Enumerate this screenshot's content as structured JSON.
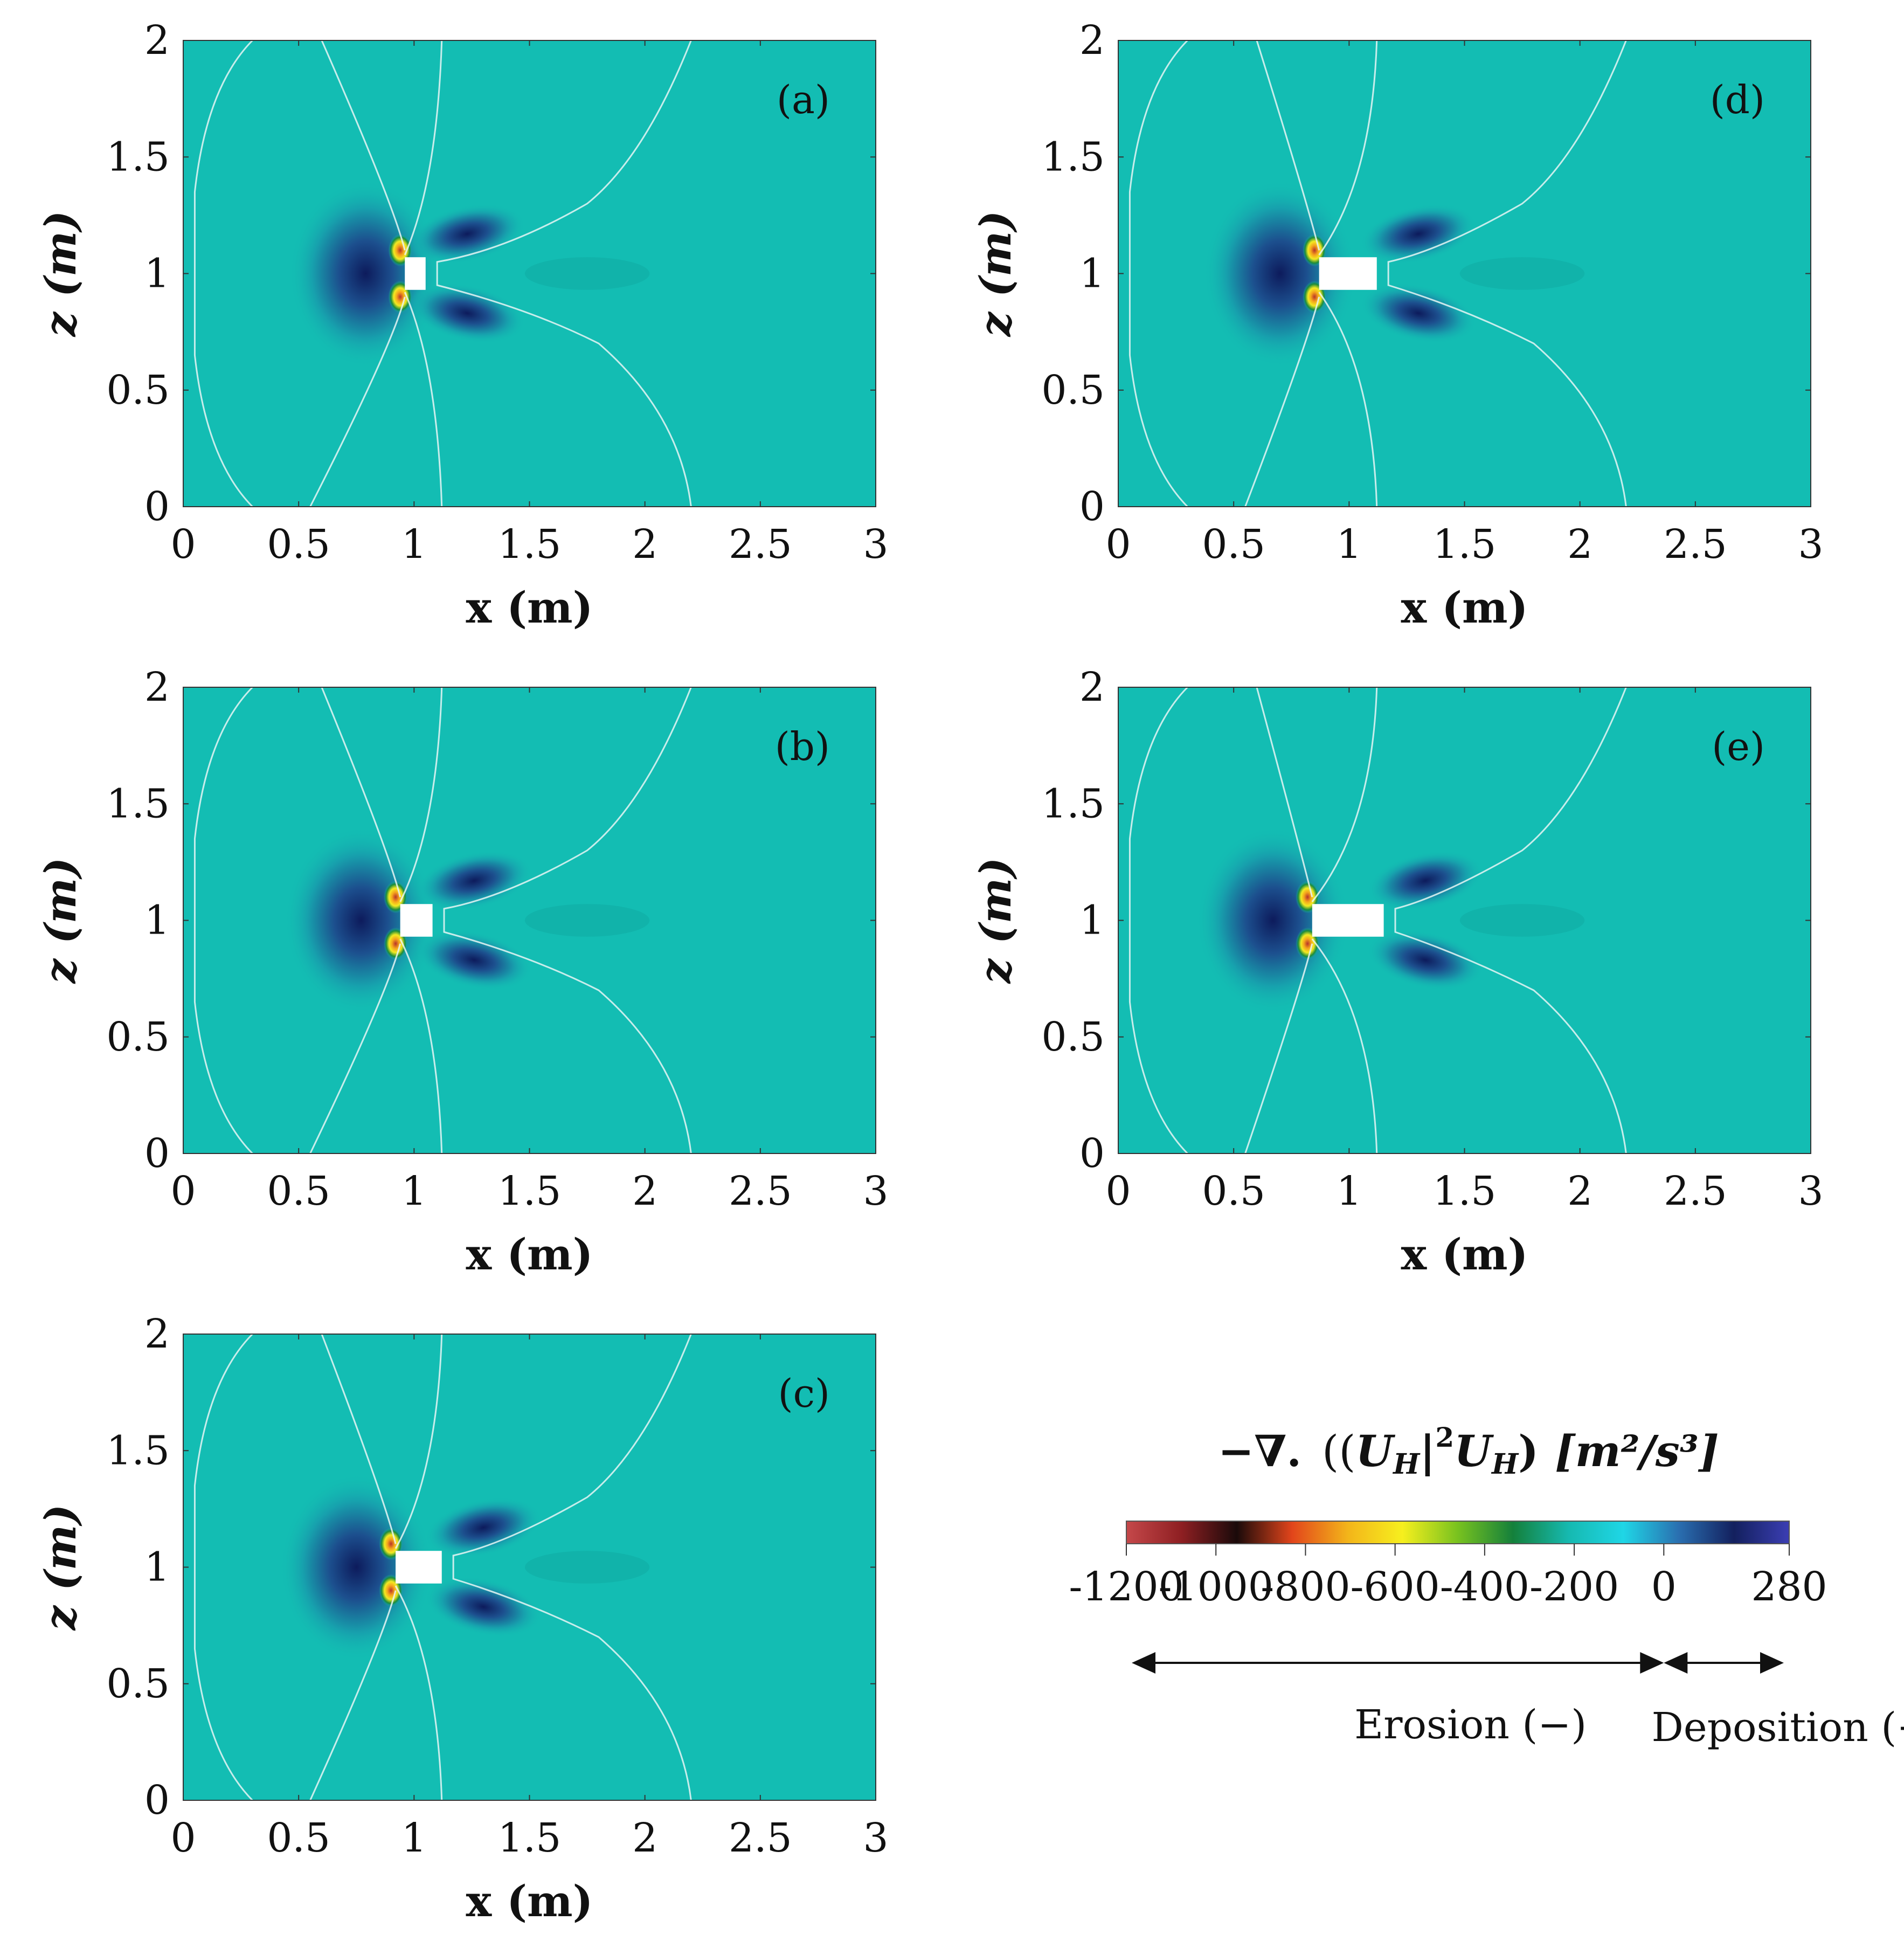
{
  "figure": {
    "panels": [
      {
        "id": "a",
        "label": "(a)",
        "obstacle_x": [
          0.96,
          1.05
        ],
        "obstacle_z": [
          0.93,
          1.07
        ]
      },
      {
        "id": "b",
        "label": "(b)",
        "obstacle_x": [
          0.94,
          1.08
        ],
        "obstacle_z": [
          0.93,
          1.07
        ]
      },
      {
        "id": "c",
        "label": "(c)",
        "obstacle_x": [
          0.92,
          1.12
        ],
        "obstacle_z": [
          0.93,
          1.07
        ]
      },
      {
        "id": "d",
        "label": "(d)",
        "obstacle_x": [
          0.87,
          1.12
        ],
        "obstacle_z": [
          0.93,
          1.07
        ]
      },
      {
        "id": "e",
        "label": "(e)",
        "obstacle_x": [
          0.84,
          1.15
        ],
        "obstacle_z": [
          0.93,
          1.07
        ]
      }
    ]
  },
  "chart_data": {
    "type": "heatmap",
    "xlabel": "x (m)",
    "ylabel": "z (m)",
    "xlim": [
      0,
      3
    ],
    "ylim": [
      0,
      2
    ],
    "x_ticks": [
      "0",
      "0.5",
      "1",
      "1.5",
      "2",
      "2.5",
      "3"
    ],
    "y_ticks": [
      "0",
      "0.5",
      "1",
      "1.5",
      "2"
    ],
    "colorbar": {
      "title_prefix": "−∇.",
      "title_var_U": "U",
      "title_var_H": "H",
      "title_exponent": "2",
      "title_units": "[m²/s³]",
      "range": [
        -1200,
        280
      ],
      "tick_labels": [
        "-1200",
        "-1000",
        "-800",
        "-600",
        "-400",
        "-200",
        "0",
        "280"
      ],
      "colors": [
        "#c5484a",
        "#8e1f22",
        "#1a0a0a",
        "#e2451b",
        "#f3b41a",
        "#f6ef1e",
        "#78c21f",
        "#14803b",
        "#16b9b0",
        "#1fd6e6",
        "#2a6fb0",
        "#13205e",
        "#3b3eb3"
      ]
    },
    "legend": {
      "erosion": "Erosion (−)",
      "deposition": "Deposition (+)"
    },
    "background_color": "#13bdb3"
  }
}
